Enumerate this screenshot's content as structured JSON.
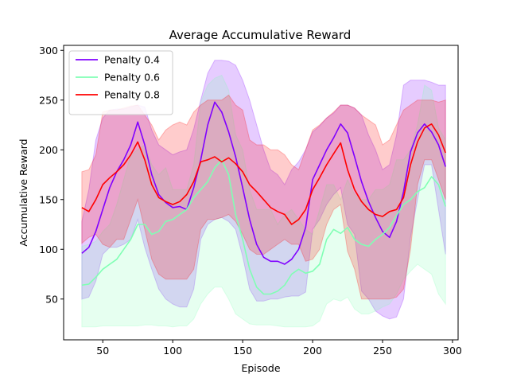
{
  "chart_data": {
    "type": "line",
    "title": "Average Accumulative Reward",
    "xlabel": "Episode",
    "ylabel": "Accumulative Reward",
    "xlim": [
      22,
      304
    ],
    "ylim": [
      9,
      305
    ],
    "xticks": [
      50,
      100,
      150,
      200,
      250,
      300
    ],
    "yticks": [
      50,
      100,
      150,
      200,
      250,
      300
    ],
    "grid": false,
    "legend_position": "top-left",
    "series": [
      {
        "name": "Penalty 0.4",
        "color": "#8000ff",
        "fill_color": "#8000ff",
        "x": [
          35,
          40,
          45,
          50,
          55,
          60,
          65,
          70,
          75,
          80,
          85,
          90,
          95,
          100,
          105,
          110,
          115,
          120,
          125,
          130,
          135,
          140,
          145,
          150,
          155,
          160,
          165,
          170,
          175,
          180,
          185,
          190,
          195,
          200,
          205,
          210,
          215,
          220,
          225,
          230,
          235,
          240,
          245,
          250,
          255,
          260,
          265,
          270,
          275,
          280,
          285,
          290,
          295
        ],
        "mean": [
          96,
          102,
          118,
          140,
          162,
          178,
          190,
          205,
          228,
          205,
          175,
          155,
          147,
          142,
          143,
          140,
          162,
          190,
          225,
          248,
          238,
          218,
          193,
          162,
          130,
          105,
          92,
          88,
          88,
          85,
          90,
          100,
          122,
          170,
          185,
          200,
          212,
          226,
          217,
          193,
          168,
          148,
          132,
          118,
          112,
          128,
          158,
          198,
          217,
          226,
          218,
          205,
          183
        ],
        "upper": [
          128,
          160,
          210,
          232,
          240,
          241,
          241,
          243,
          245,
          243,
          220,
          205,
          200,
          195,
          198,
          200,
          221,
          250,
          277,
          290,
          290,
          289,
          285,
          270,
          250,
          225,
          200,
          180,
          175,
          165,
          180,
          188,
          200,
          218,
          224,
          232,
          237,
          245,
          245,
          242,
          235,
          215,
          200,
          180,
          185,
          215,
          265,
          270,
          270,
          270,
          268,
          265,
          265
        ],
        "lower": [
          50,
          52,
          68,
          95,
          102,
          102,
          105,
          110,
          130,
          102,
          80,
          60,
          50,
          45,
          42,
          42,
          60,
          110,
          125,
          130,
          132,
          128,
          120,
          93,
          60,
          48,
          48,
          50,
          50,
          52,
          53,
          53,
          57,
          120,
          130,
          145,
          155,
          162,
          125,
          115,
          58,
          50,
          38,
          33,
          30,
          32,
          50,
          112,
          150,
          185,
          185,
          140,
          95
        ]
      },
      {
        "name": "Penalty 0.6",
        "color": "#80ffb4",
        "fill_color": "#80ffb4",
        "x": [
          35,
          40,
          45,
          50,
          55,
          60,
          65,
          70,
          75,
          80,
          85,
          90,
          95,
          100,
          105,
          110,
          115,
          120,
          125,
          130,
          135,
          140,
          145,
          150,
          155,
          160,
          165,
          170,
          175,
          180,
          185,
          190,
          195,
          200,
          205,
          210,
          215,
          220,
          225,
          230,
          235,
          240,
          245,
          250,
          255,
          260,
          265,
          270,
          275,
          280,
          285,
          290,
          295
        ],
        "mean": [
          64,
          65,
          72,
          80,
          85,
          90,
          100,
          110,
          125,
          125,
          115,
          118,
          128,
          130,
          135,
          140,
          152,
          160,
          168,
          182,
          190,
          175,
          135,
          110,
          80,
          62,
          55,
          55,
          58,
          64,
          75,
          80,
          76,
          78,
          85,
          110,
          120,
          116,
          122,
          110,
          105,
          103,
          110,
          115,
          122,
          134,
          145,
          150,
          158,
          162,
          173,
          165,
          143
        ],
        "upper": [
          103,
          105,
          108,
          118,
          125,
          145,
          170,
          195,
          200,
          205,
          185,
          175,
          182,
          160,
          160,
          160,
          185,
          248,
          265,
          272,
          275,
          260,
          215,
          200,
          160,
          140,
          140,
          140,
          125,
          135,
          140,
          130,
          120,
          115,
          140,
          165,
          165,
          150,
          170,
          155,
          150,
          150,
          160,
          160,
          165,
          190,
          190,
          200,
          225,
          265,
          260,
          222,
          210
        ],
        "lower": [
          22,
          22,
          22,
          23,
          23,
          23,
          23,
          23,
          23,
          24,
          24,
          23,
          23,
          22,
          23,
          23,
          30,
          45,
          55,
          62,
          62,
          50,
          35,
          30,
          25,
          24,
          24,
          24,
          23,
          22,
          22,
          22,
          22,
          23,
          28,
          45,
          50,
          48,
          52,
          40,
          35,
          35,
          38,
          42,
          45,
          55,
          70,
          78,
          85,
          80,
          75,
          55,
          45
        ]
      },
      {
        "name": "Penalty 0.8",
        "color": "#ff0000",
        "fill_color": "#ff0000",
        "x": [
          35,
          40,
          45,
          50,
          55,
          60,
          65,
          70,
          75,
          80,
          85,
          90,
          95,
          100,
          105,
          110,
          115,
          120,
          125,
          130,
          135,
          140,
          145,
          150,
          155,
          160,
          165,
          170,
          175,
          180,
          185,
          190,
          195,
          200,
          205,
          210,
          215,
          220,
          225,
          230,
          235,
          240,
          245,
          250,
          255,
          260,
          265,
          270,
          275,
          280,
          285,
          290,
          295
        ],
        "mean": [
          142,
          138,
          150,
          165,
          172,
          178,
          185,
          195,
          208,
          190,
          165,
          152,
          148,
          145,
          148,
          155,
          168,
          188,
          190,
          193,
          188,
          192,
          186,
          178,
          165,
          158,
          150,
          142,
          138,
          135,
          125,
          130,
          140,
          160,
          172,
          185,
          196,
          207,
          180,
          160,
          148,
          140,
          135,
          133,
          138,
          140,
          152,
          185,
          208,
          222,
          226,
          215,
          197
        ],
        "upper": [
          178,
          180,
          195,
          238,
          240,
          240,
          242,
          244,
          245,
          235,
          225,
          210,
          220,
          225,
          228,
          225,
          238,
          245,
          250,
          250,
          250,
          255,
          245,
          240,
          210,
          205,
          205,
          200,
          200,
          195,
          185,
          180,
          200,
          220,
          225,
          232,
          238,
          245,
          245,
          242,
          235,
          230,
          225,
          205,
          210,
          225,
          240,
          245,
          250,
          250,
          250,
          248,
          250
        ],
        "lower": [
          106,
          112,
          115,
          105,
          102,
          110,
          110,
          130,
          150,
          120,
          90,
          75,
          70,
          70,
          70,
          70,
          80,
          120,
          130,
          130,
          132,
          135,
          128,
          115,
          100,
          95,
          95,
          100,
          105,
          110,
          105,
          105,
          88,
          90,
          100,
          125,
          140,
          145,
          98,
          80,
          50,
          50,
          50,
          50,
          50,
          52,
          60,
          100,
          165,
          190,
          190,
          170,
          150
        ]
      }
    ]
  }
}
